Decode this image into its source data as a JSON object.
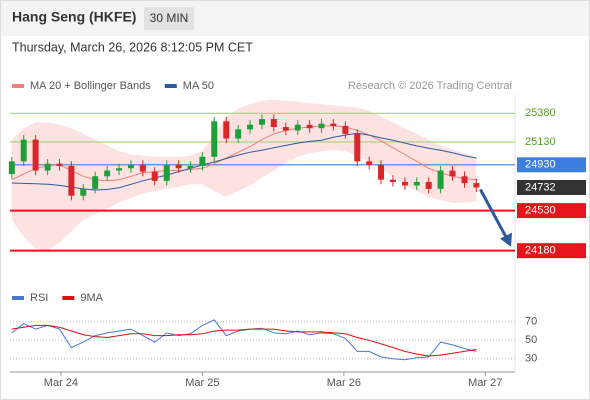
{
  "header": {
    "title": "Hang Seng (HKFE)",
    "interval": "30 MIN",
    "timestamp": "Thursday, March 26, 2026 8:12:05 PM CET",
    "credit": "Research © 2026 Trading Central"
  },
  "chart_data": [
    {
      "type": "candlestick",
      "x": [
        -0.347,
        -0.263,
        -0.179,
        -0.094,
        -0.01,
        0.074,
        0.158,
        0.242,
        0.327,
        0.411,
        0.495,
        0.579,
        0.663,
        0.748,
        0.832,
        0.916,
        1.0,
        1.084,
        1.169,
        1.253,
        1.337,
        1.421,
        1.505,
        1.59,
        1.674,
        1.758,
        1.842,
        1.926,
        2.011,
        2.095,
        2.179,
        2.263,
        2.347,
        2.432,
        2.516,
        2.6,
        2.684,
        2.768,
        2.853,
        2.937
      ],
      "open": [
        24850,
        24960,
        25150,
        24880,
        24940,
        24920,
        24660,
        24720,
        24830,
        24880,
        24900,
        24930,
        24870,
        24790,
        24930,
        24900,
        24920,
        25000,
        25310,
        25160,
        25240,
        25280,
        25330,
        25260,
        25230,
        25280,
        25250,
        25290,
        25270,
        25200,
        24960,
        24930,
        24800,
        24780,
        24750,
        24780,
        24720,
        24880,
        24830,
        24770
      ],
      "high": [
        25000,
        25190,
        25190,
        24980,
        24980,
        24960,
        24760,
        24870,
        24920,
        24940,
        24970,
        24970,
        24910,
        24970,
        24970,
        24960,
        25040,
        25350,
        25350,
        25280,
        25320,
        25370,
        25370,
        25300,
        25320,
        25320,
        25330,
        25330,
        25310,
        25240,
        25000,
        24970,
        24840,
        24820,
        24820,
        24820,
        24920,
        24920,
        24870,
        24810
      ],
      "low": [
        24810,
        24920,
        24840,
        24840,
        24880,
        24620,
        24620,
        24680,
        24790,
        24840,
        24860,
        24830,
        24750,
        24750,
        24860,
        24860,
        24880,
        24960,
        25120,
        25120,
        25200,
        25240,
        25220,
        25190,
        25190,
        25210,
        25210,
        25230,
        25160,
        24920,
        24890,
        24760,
        24740,
        24710,
        24710,
        24680,
        24680,
        24790,
        24730,
        24692
      ],
      "close": [
        24960,
        25150,
        24880,
        24940,
        24920,
        24660,
        24720,
        24830,
        24880,
        24900,
        24930,
        24870,
        24790,
        24930,
        24900,
        24920,
        25000,
        25310,
        25160,
        25240,
        25280,
        25330,
        25260,
        25230,
        25280,
        25250,
        25290,
        25270,
        25200,
        24960,
        24930,
        24800,
        24780,
        24750,
        24780,
        24720,
        24880,
        24830,
        24770,
        24732
      ],
      "up_color": "#1f9e3a",
      "down_color": "#d9262a",
      "series": [
        {
          "name": "MA 20 + Bollinger Bands",
          "color": "#f08080",
          "values": [
            24800,
            24850,
            24900,
            24920,
            24930,
            24880,
            24830,
            24800,
            24790,
            24800,
            24830,
            24860,
            24870,
            24880,
            24880,
            24890,
            24900,
            24940,
            24990,
            25040,
            25090,
            25150,
            25200,
            25230,
            25250,
            25260,
            25270,
            25270,
            25260,
            25230,
            25190,
            25140,
            25080,
            25020,
            24960,
            24900,
            24860,
            24830,
            24810,
            24800
          ]
        },
        {
          "name": "MA 50",
          "color": "#2d5a9e",
          "values": [
            24771,
            24768,
            24764,
            24760,
            24750,
            24735,
            24720,
            24710,
            24715,
            24730,
            24760,
            24790,
            24815,
            24841,
            24870,
            24900,
            24928,
            24955,
            24985,
            25015,
            25040,
            25058,
            25080,
            25100,
            25120,
            25135,
            25145,
            25170,
            25190,
            25206,
            25190,
            25165,
            25145,
            25120,
            25095,
            25075,
            25058,
            25035,
            25010,
            24989
          ]
        }
      ],
      "bands": {
        "color": "#fde2e2",
        "upper": [
          25150,
          25250,
          25300,
          25300,
          25280,
          25250,
          25200,
          25150,
          25100,
          25050,
          25020,
          25010,
          25000,
          25000,
          25000,
          25010,
          25050,
          25200,
          25350,
          25420,
          25460,
          25490,
          25500,
          25490,
          25480,
          25470,
          25460,
          25450,
          25440,
          25430,
          25400,
          25350,
          25300,
          25250,
          25200,
          25150,
          25100,
          25060,
          25030,
          25000
        ],
        "lower": [
          24450,
          24300,
          24200,
          24180,
          24250,
          24350,
          24450,
          24500,
          24550,
          24600,
          24640,
          24680,
          24700,
          24720,
          24740,
          24760,
          24760,
          24700,
          24650,
          24700,
          24750,
          24820,
          24880,
          24950,
          25000,
          25030,
          25050,
          25060,
          25050,
          25000,
          24960,
          24900,
          24820,
          24750,
          24700,
          24650,
          24620,
          24600,
          24600,
          24610
        ]
      },
      "levels": [
        {
          "value": 25380,
          "color": "#a6d07a",
          "line": true,
          "box": false
        },
        {
          "value": 25130,
          "color": "#a6d07a",
          "line": true,
          "box": false
        },
        {
          "value": 24930,
          "color": "#3d7fe0",
          "line": true,
          "box": true
        },
        {
          "value": 24732,
          "color": "#333333",
          "line": false,
          "box": true
        },
        {
          "value": 24530,
          "color": "#e8141b",
          "line": true,
          "box": true
        },
        {
          "value": 24180,
          "color": "#e8141b",
          "line": true,
          "box": true
        }
      ],
      "ylim": [
        23880,
        25540
      ],
      "xlim": [
        -0.36,
        3.21
      ],
      "xticks": [
        {
          "value": 0,
          "label": "Mar 24"
        },
        {
          "value": 1,
          "label": "Mar 25"
        },
        {
          "value": 2,
          "label": "Mar 26"
        },
        {
          "value": 3,
          "label": "Mar 27"
        }
      ]
    },
    {
      "type": "line",
      "series": [
        {
          "name": "RSI",
          "color": "#4a78d0",
          "values": [
            58,
            68,
            62,
            66,
            62,
            42,
            48,
            55,
            58,
            60,
            62,
            55,
            48,
            58,
            55,
            57,
            66,
            72,
            55,
            60,
            62,
            63,
            58,
            57,
            60,
            56,
            58,
            57,
            52,
            38,
            38,
            32,
            30,
            29,
            31,
            32,
            48,
            45,
            41,
            38
          ]
        },
        {
          "name": "9MA",
          "color": "#e01010",
          "values": [
            62,
            64,
            66,
            66,
            64,
            60,
            56,
            54,
            53,
            55,
            57,
            57,
            55,
            55,
            56,
            56,
            57,
            60,
            61,
            61,
            62,
            62,
            62,
            60,
            59,
            59,
            59,
            58,
            57,
            53,
            50,
            46,
            42,
            38,
            35,
            33,
            34,
            36,
            38,
            40
          ]
        }
      ],
      "ylim": [
        20,
        80
      ],
      "yticks": [
        30,
        50,
        70
      ],
      "grid": true
    }
  ]
}
